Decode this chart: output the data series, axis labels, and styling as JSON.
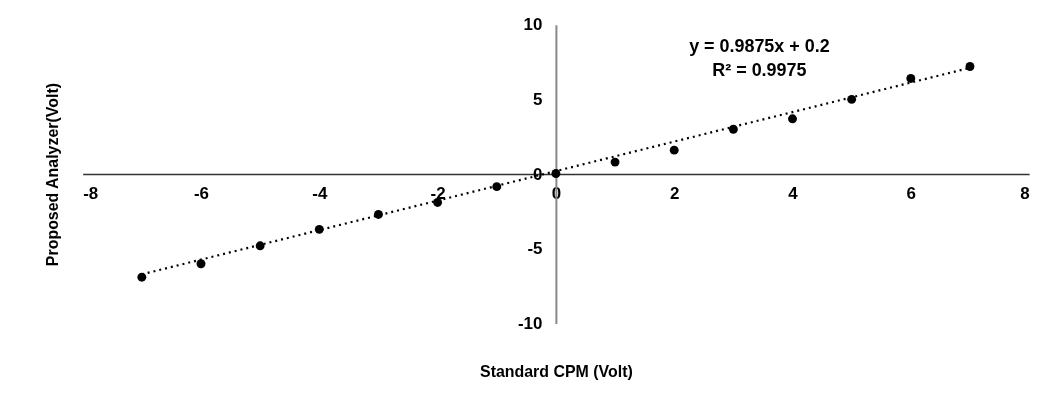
{
  "chart_data": {
    "type": "scatter",
    "xlabel": "Standard CPM (Volt)",
    "ylabel": "Proposed Analyzer(Volt)",
    "annotations": [
      "y = 0.9875x + 0.2",
      "R² = 0.9975"
    ],
    "x": [
      -7,
      -6,
      -5,
      -4,
      -3,
      -2,
      -1,
      0,
      1,
      2,
      3,
      4,
      5,
      6,
      7
    ],
    "series": [
      {
        "color": "#000000",
        "marker": "circle",
        "values": [
          -6.9,
          -6.0,
          -4.8,
          -3.7,
          -2.7,
          -1.9,
          -0.84,
          0.04,
          0.8,
          1.6,
          3.0,
          3.7,
          5.0,
          6.4,
          7.2
        ]
      },
      {
        "type": "line",
        "color": "#000000",
        "line_style": "dotted",
        "x": [
          -7,
          7
        ],
        "values": [
          -6.71,
          7.11
        ]
      }
    ],
    "xlim": [
      -8,
      8
    ],
    "ylim": [
      -10,
      10
    ],
    "xticks": [
      -8,
      -6,
      -4,
      -2,
      0,
      2,
      4,
      6,
      8
    ],
    "yticks": [
      -10,
      -5,
      0,
      5,
      10
    ],
    "grid": false
  }
}
